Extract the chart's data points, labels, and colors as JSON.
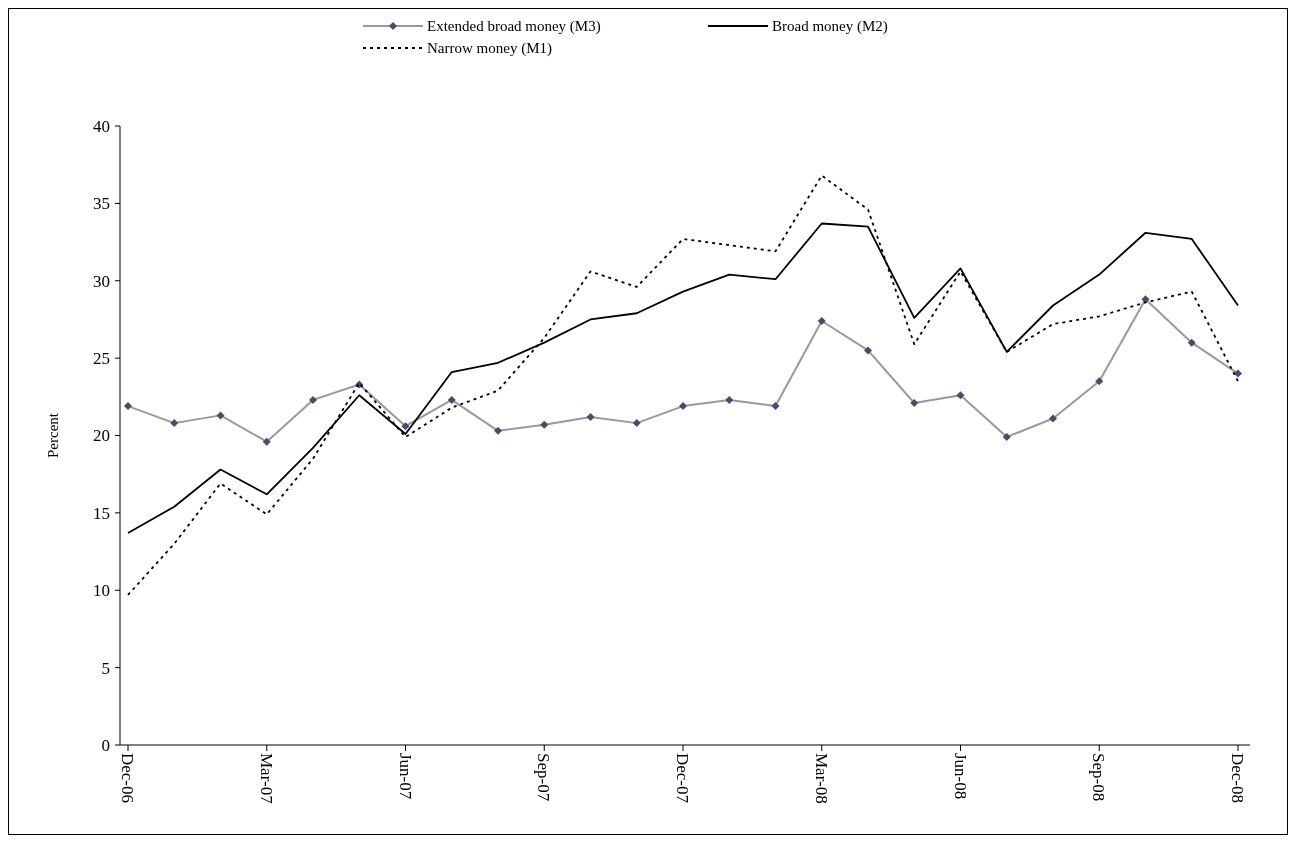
{
  "chart_data": {
    "type": "line",
    "ylabel": "Percent",
    "ylim": [
      0,
      40
    ],
    "yticks": [
      0,
      5,
      10,
      15,
      20,
      25,
      30,
      35,
      40
    ],
    "grid": false,
    "legend": "top",
    "categories": [
      "Dec-06",
      null,
      null,
      "Mar-07",
      null,
      null,
      "Jun-07",
      null,
      null,
      "Sep-07",
      null,
      null,
      "Dec-07",
      null,
      null,
      "Mar-08",
      null,
      null,
      "Jun-08",
      null,
      null,
      "Sep-08",
      null,
      null,
      "Dec-08"
    ],
    "series": [
      {
        "name": "Extended broad money (M3)",
        "color": "#999999",
        "marker": "diamond",
        "line_style": "solid",
        "values": [
          21.9,
          20.8,
          21.3,
          19.6,
          22.3,
          23.3,
          20.6,
          22.3,
          20.3,
          20.7,
          21.2,
          20.8,
          21.9,
          22.3,
          21.9,
          27.4,
          25.5,
          22.1,
          22.6,
          19.9,
          21.1,
          23.5,
          28.8,
          26.0,
          24.0
        ]
      },
      {
        "name": "Broad money (M2)",
        "color": "#000000",
        "marker": "none",
        "line_style": "solid",
        "values": [
          13.7,
          15.4,
          17.8,
          16.2,
          19.2,
          22.6,
          20.1,
          24.1,
          24.7,
          26.0,
          27.5,
          27.9,
          29.3,
          30.4,
          30.1,
          33.7,
          33.5,
          27.6,
          30.8,
          25.4,
          28.4,
          30.4,
          33.1,
          32.7,
          28.4
        ]
      },
      {
        "name": "Narrow money (M1)",
        "color": "#000000",
        "marker": "none",
        "line_style": "dotted",
        "values": [
          9.7,
          13.0,
          16.9,
          14.9,
          18.5,
          23.4,
          19.9,
          21.8,
          22.9,
          26.3,
          30.6,
          29.6,
          32.7,
          32.3,
          31.9,
          36.8,
          34.6,
          25.9,
          30.6,
          25.4,
          27.2,
          27.7,
          28.6,
          29.3,
          23.5
        ]
      }
    ]
  }
}
